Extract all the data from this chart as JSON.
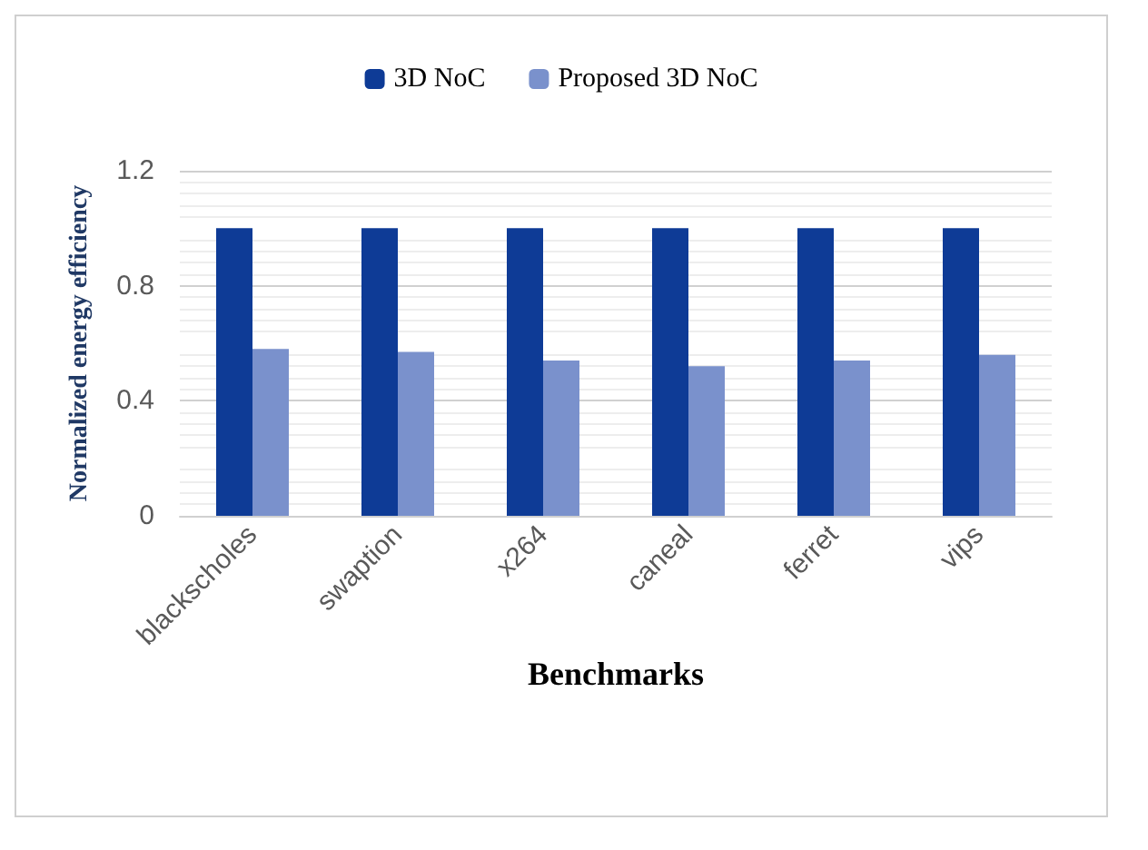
{
  "chart_data": {
    "type": "bar",
    "categories": [
      "blackscholes",
      "swaption",
      "x264",
      "caneal",
      "ferret",
      "vips"
    ],
    "series": [
      {
        "name": "3D NoC",
        "color": "#0e3b96",
        "values": [
          1,
          1,
          1,
          1,
          1,
          1
        ]
      },
      {
        "name": "Proposed 3D NoC",
        "color": "#7a91cc",
        "values": [
          0.58,
          0.57,
          0.54,
          0.52,
          0.54,
          0.56
        ]
      }
    ],
    "xlabel": "Benchmarks",
    "ylabel": "Normalized energy efficiency",
    "ylim": [
      0,
      1.2
    ],
    "yticks": [
      0,
      0.4,
      0.8,
      1.2
    ],
    "grid": "y",
    "legend": "top"
  }
}
